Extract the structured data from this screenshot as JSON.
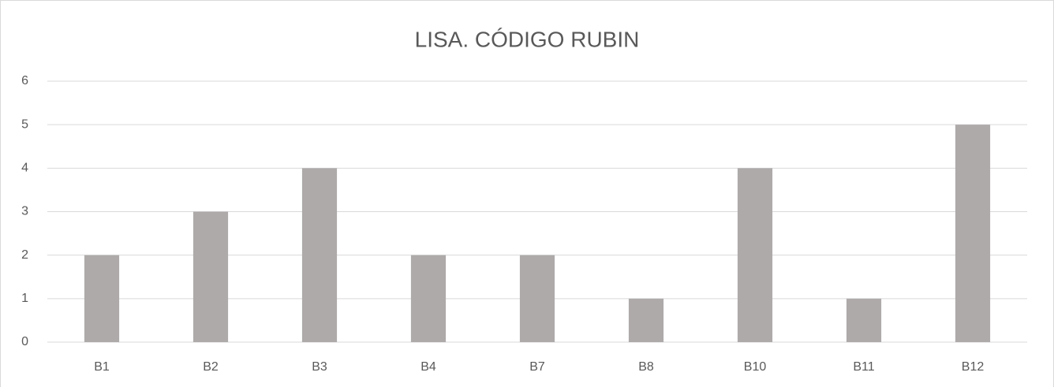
{
  "chart_data": {
    "type": "bar",
    "title": "LISA. CÓDIGO RUBIN",
    "categories": [
      "B1",
      "B2",
      "B3",
      "B4",
      "B7",
      "B8",
      "B10",
      "B11",
      "B12"
    ],
    "values": [
      2,
      3,
      4,
      2,
      2,
      1,
      4,
      1,
      5
    ],
    "color": "#aeaaaa",
    "ylim": [
      0,
      6
    ],
    "yticks": [
      0,
      1,
      2,
      3,
      4,
      5,
      6
    ],
    "grid": true
  }
}
